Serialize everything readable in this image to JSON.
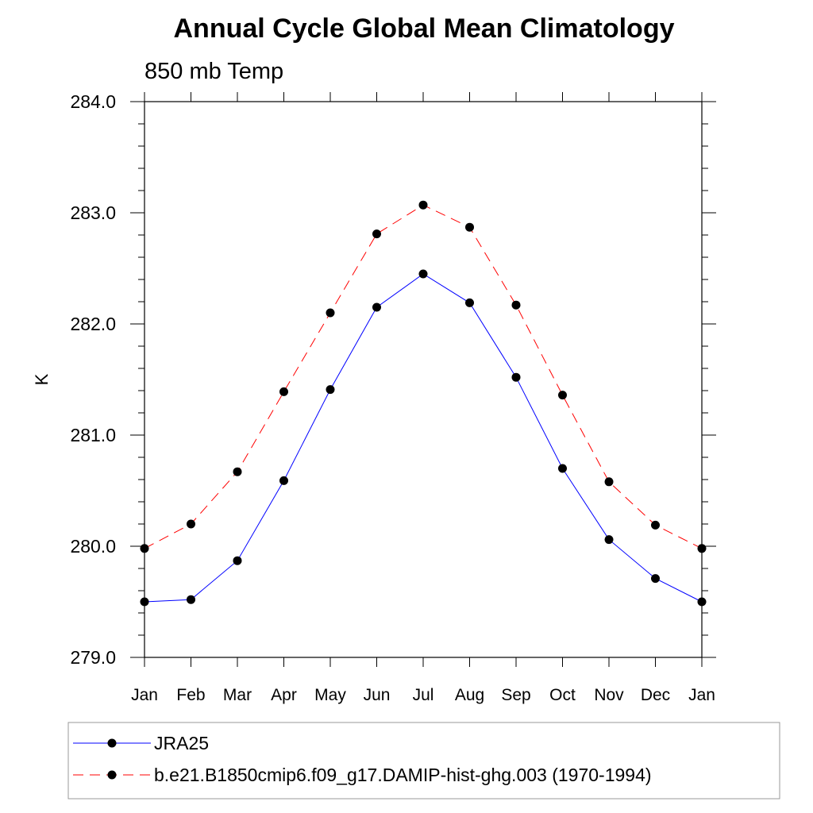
{
  "colors": {
    "series_1": "#0000ff",
    "series_2": "#ff0000",
    "marker": "#000000"
  },
  "chart_data": {
    "type": "line",
    "title": "Annual Cycle Global Mean Climatology",
    "subtitle": "850 mb Temp",
    "ylabel": "K",
    "xlabel": "",
    "categories": [
      "Jan",
      "Feb",
      "Mar",
      "Apr",
      "May",
      "Jun",
      "Jul",
      "Aug",
      "Sep",
      "Oct",
      "Nov",
      "Dec",
      "Jan"
    ],
    "ylim": [
      279.0,
      284.0
    ],
    "yticks": [
      279.0,
      280.0,
      281.0,
      282.0,
      283.0,
      284.0
    ],
    "ytick_labels": [
      "279.0",
      "280.0",
      "281.0",
      "282.0",
      "283.0",
      "284.0"
    ],
    "grid": false,
    "legend_position": "bottom",
    "series": [
      {
        "name": "JRA25",
        "line_style": "solid",
        "marker": "filled-circle",
        "values": [
          279.5,
          279.52,
          279.87,
          280.59,
          281.41,
          282.15,
          282.45,
          282.19,
          281.52,
          280.7,
          280.06,
          279.71,
          279.5
        ]
      },
      {
        "name": "b.e21.B1850cmip6.f09_g17.DAMIP-hist-ghg.003 (1970-1994)",
        "line_style": "dashed",
        "marker": "filled-circle",
        "values": [
          279.98,
          280.2,
          280.67,
          281.39,
          282.1,
          282.81,
          283.07,
          282.87,
          282.17,
          281.36,
          280.58,
          280.19,
          279.98
        ]
      }
    ]
  }
}
